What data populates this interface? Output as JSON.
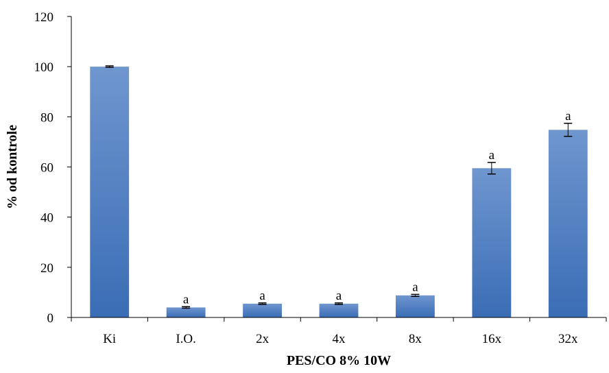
{
  "chart_data": {
    "type": "bar",
    "title": "",
    "xlabel": "PES/CO  8%  10W",
    "ylabel": "% od kontrole",
    "ylim": [
      0,
      120
    ],
    "yticks": [
      0,
      20,
      40,
      60,
      80,
      100,
      120
    ],
    "grid": false,
    "legend": "none",
    "categories": [
      "Ki",
      "I.O.",
      "2x",
      "4x",
      "8x",
      "16x",
      "32x"
    ],
    "values": [
      100,
      4,
      5.5,
      5.5,
      8.8,
      59.5,
      74.8
    ],
    "errors": [
      0.3,
      0.3,
      0.3,
      0.3,
      0.4,
      2.3,
      2.6
    ],
    "annotations": [
      "",
      "a",
      "a",
      "a",
      "a",
      "a",
      "a"
    ],
    "colors": {
      "bar_top": "#6f96cf",
      "bar_bottom": "#3a6db5",
      "axis": "#000000"
    }
  }
}
